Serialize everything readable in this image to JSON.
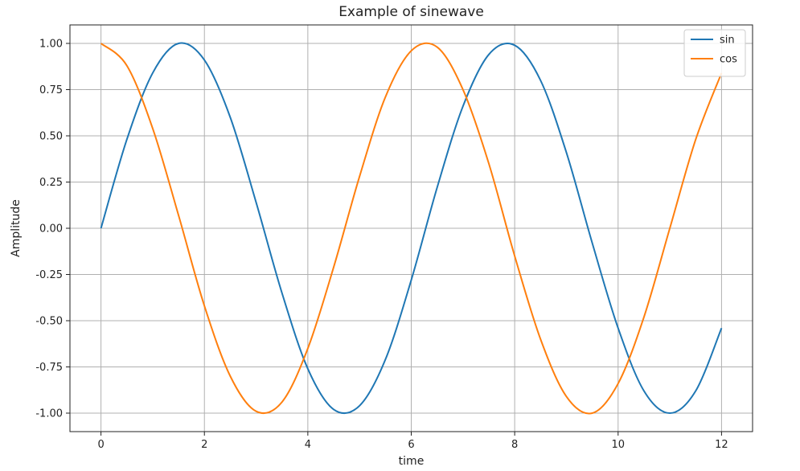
{
  "chart_data": {
    "type": "line",
    "title": "Example of sinewave",
    "xlabel": "time",
    "ylabel": "Amplitude",
    "xlim": [
      -0.6,
      12.6
    ],
    "ylim": [
      -1.1,
      1.1
    ],
    "xticks": [
      0,
      2,
      4,
      6,
      8,
      10,
      12
    ],
    "xtick_labels": [
      "0",
      "2",
      "4",
      "6",
      "8",
      "10",
      "12"
    ],
    "yticks": [
      1.0,
      0.75,
      0.5,
      0.25,
      0.0,
      -0.25,
      -0.5,
      -0.75,
      -1.0
    ],
    "ytick_labels": [
      "1.00",
      "0.75",
      "0.50",
      "0.25",
      "0.00",
      "-0.25",
      "-0.50",
      "-0.75",
      "-1.00"
    ],
    "grid": true,
    "legend_position": "top-right",
    "x": [
      0.0,
      0.5,
      1.0,
      1.5,
      2.0,
      2.5,
      3.0,
      3.5,
      4.0,
      4.5,
      5.0,
      5.5,
      6.0,
      6.5,
      7.0,
      7.5,
      8.0,
      8.5,
      9.0,
      9.5,
      10.0,
      10.5,
      11.0,
      11.5,
      12.0
    ],
    "series": [
      {
        "name": "sin",
        "color": "#1f77b4",
        "values": [
          0.0,
          0.48,
          0.84,
          1.0,
          0.91,
          0.6,
          0.14,
          -0.35,
          -0.76,
          -0.98,
          -0.96,
          -0.71,
          -0.28,
          0.22,
          0.66,
          0.94,
          0.99,
          0.8,
          0.41,
          -0.08,
          -0.54,
          -0.88,
          -1.0,
          -0.88,
          -0.54
        ]
      },
      {
        "name": "cos",
        "color": "#ff7f0e",
        "values": [
          1.0,
          0.88,
          0.54,
          0.07,
          -0.42,
          -0.8,
          -0.99,
          -0.94,
          -0.65,
          -0.21,
          0.28,
          0.71,
          0.96,
          0.98,
          0.75,
          0.35,
          -0.15,
          -0.6,
          -0.91,
          -1.0,
          -0.84,
          -0.48,
          0.0,
          0.48,
          0.84
        ]
      }
    ]
  }
}
